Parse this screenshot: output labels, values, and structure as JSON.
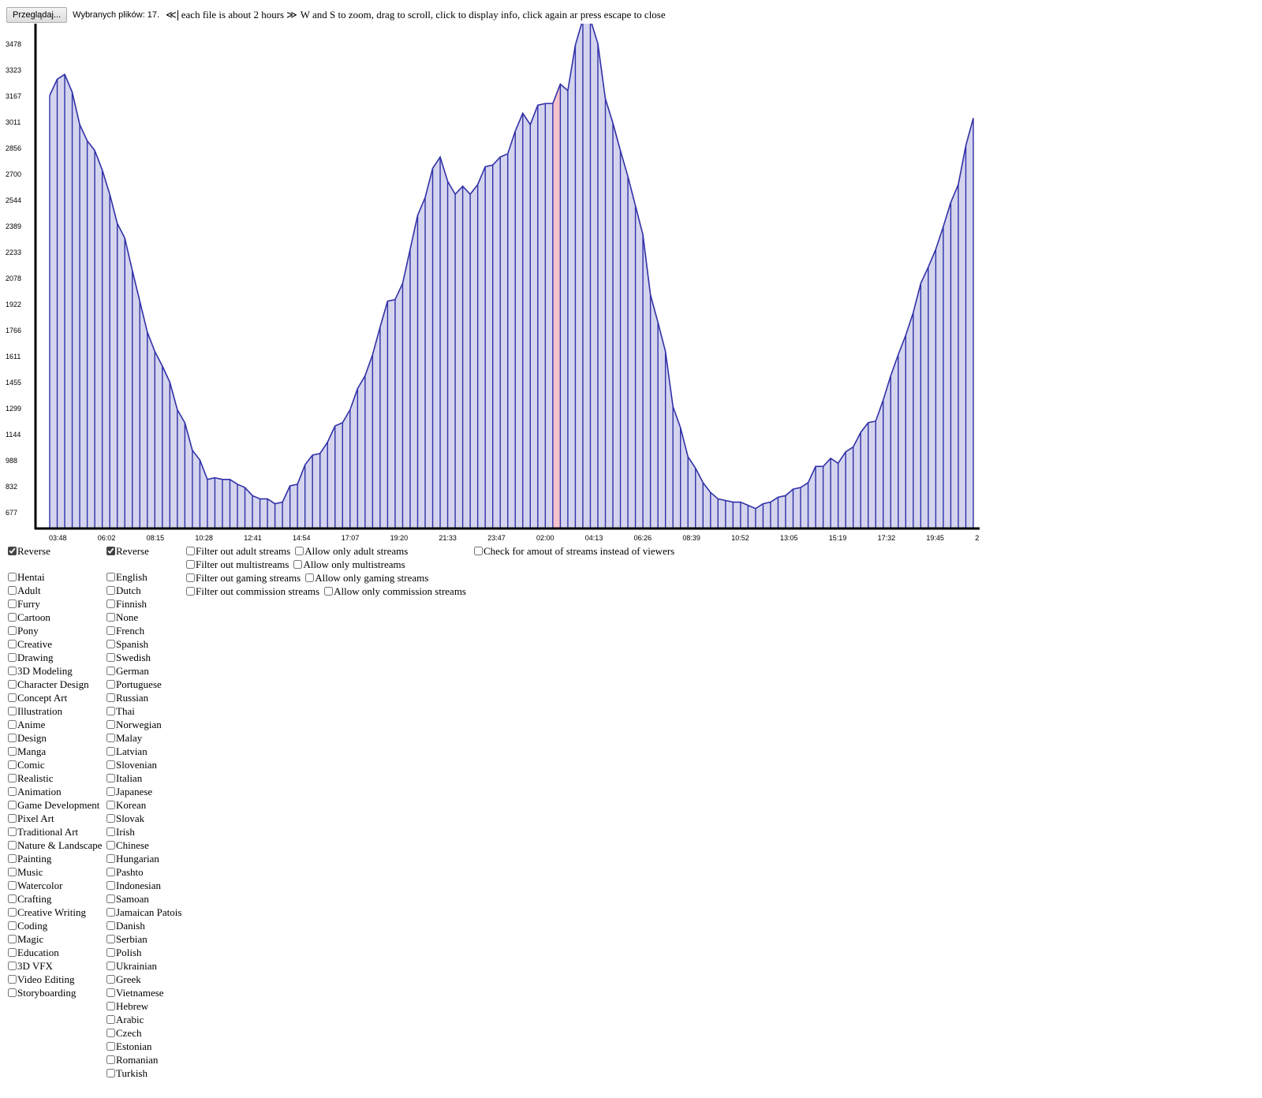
{
  "toolbar": {
    "browse_label": "Przeglądaj...",
    "files_label": "Wybranych plików: 17.",
    "prev_glyph": "≪",
    "next_glyph": "≫",
    "info_text": "each file is about 2 hours",
    "help_text": "W and S to zoom, drag to scroll, click to display info, click again ar press escape to close"
  },
  "colors": {
    "line": "#3030a8",
    "fill": "#d4d4ee",
    "highlight": "#f6c3cc",
    "axis": "#000000"
  },
  "chart_data": {
    "type": "area",
    "y_ticks": [
      "3478",
      "3323",
      "3167",
      "3011",
      "2856",
      "2700",
      "2544",
      "2389",
      "2233",
      "2078",
      "1922",
      "1766",
      "1611",
      "1455",
      "1299",
      "1144",
      "988",
      "832",
      "677"
    ],
    "x_ticks": [
      "03:48",
      "06:02",
      "08:15",
      "10:28",
      "12:41",
      "14:54",
      "17:07",
      "19:20",
      "21:33",
      "23:47",
      "02:00",
      "04:13",
      "06:26",
      "08:39",
      "10:52",
      "13:05",
      "15:19",
      "17:32",
      "19:45",
      "2"
    ],
    "ylim": [
      522,
      3633
    ],
    "highlight_index": 67,
    "values": [
      3190,
      3290,
      3320,
      3210,
      3010,
      2910,
      2850,
      2730,
      2580,
      2400,
      2310,
      2110,
      1920,
      1730,
      1610,
      1520,
      1420,
      1250,
      1170,
      1000,
      940,
      820,
      830,
      820,
      820,
      790,
      770,
      720,
      700,
      700,
      670,
      680,
      780,
      790,
      910,
      970,
      980,
      1050,
      1150,
      1170,
      1250,
      1380,
      1460,
      1590,
      1760,
      1920,
      1930,
      2030,
      2240,
      2450,
      2560,
      2740,
      2810,
      2660,
      2580,
      2630,
      2580,
      2640,
      2750,
      2760,
      2810,
      2830,
      2970,
      3080,
      3010,
      3130,
      3140,
      3140,
      3260,
      3220,
      3500,
      3660,
      3660,
      3510,
      3170,
      3020,
      2850,
      2690,
      2510,
      2330,
      1960,
      1790,
      1610,
      1270,
      1140,
      960,
      890,
      800,
      740,
      700,
      690,
      680,
      680,
      660,
      640,
      670,
      680,
      710,
      720,
      760,
      770,
      800,
      900,
      900,
      950,
      920,
      990,
      1020,
      1110,
      1170,
      1180,
      1310,
      1460,
      1590,
      1710,
      1850,
      2030,
      2130,
      2240,
      2380,
      2530,
      2640,
      2880,
      3050
    ]
  },
  "left_reverse": {
    "label": "Reverse",
    "checked": true
  },
  "right_reverse": {
    "label": "Reverse",
    "checked": true
  },
  "categories": [
    "Hentai",
    "Adult",
    "Furry",
    "Cartoon",
    "Pony",
    "Creative",
    "Drawing",
    "3D Modeling",
    "Character Design",
    "Concept Art",
    "Illustration",
    "Anime",
    "Design",
    "Manga",
    "Comic",
    "Realistic",
    "Animation",
    "Game Development",
    "Pixel Art",
    "Traditional Art",
    "Nature & Landscape",
    "Painting",
    "Music",
    "Watercolor",
    "Crafting",
    "Creative Writing",
    "Coding",
    "Magic",
    "Education",
    "3D VFX",
    "Video Editing",
    "Storyboarding"
  ],
  "languages": [
    "English",
    "Dutch",
    "Finnish",
    "None",
    "French",
    "Spanish",
    "Swedish",
    "German",
    "Portuguese",
    "Russian",
    "Thai",
    "Norwegian",
    "Malay",
    "Latvian",
    "Slovenian",
    "Italian",
    "Japanese",
    "Korean",
    "Slovak",
    "Irish",
    "Chinese",
    "Hungarian",
    "Pashto",
    "Indonesian",
    "Samoan",
    "Jamaican Patois",
    "Danish",
    "Serbian",
    "Polish",
    "Ukrainian",
    "Greek",
    "Vietnamese",
    "Hebrew",
    "Arabic",
    "Czech",
    "Estonian",
    "Romanian",
    "Turkish"
  ],
  "filters": [
    [
      "Filter out adult streams",
      "Allow only adult streams"
    ],
    [
      "Filter out multistreams",
      "Allow only multistreams"
    ],
    [
      "Filter out gaming streams",
      "Allow only gaming streams"
    ],
    [
      "Filter out commission streams",
      "Allow only commission streams"
    ]
  ],
  "amount_filter": "Check for amout of streams instead of viewers"
}
